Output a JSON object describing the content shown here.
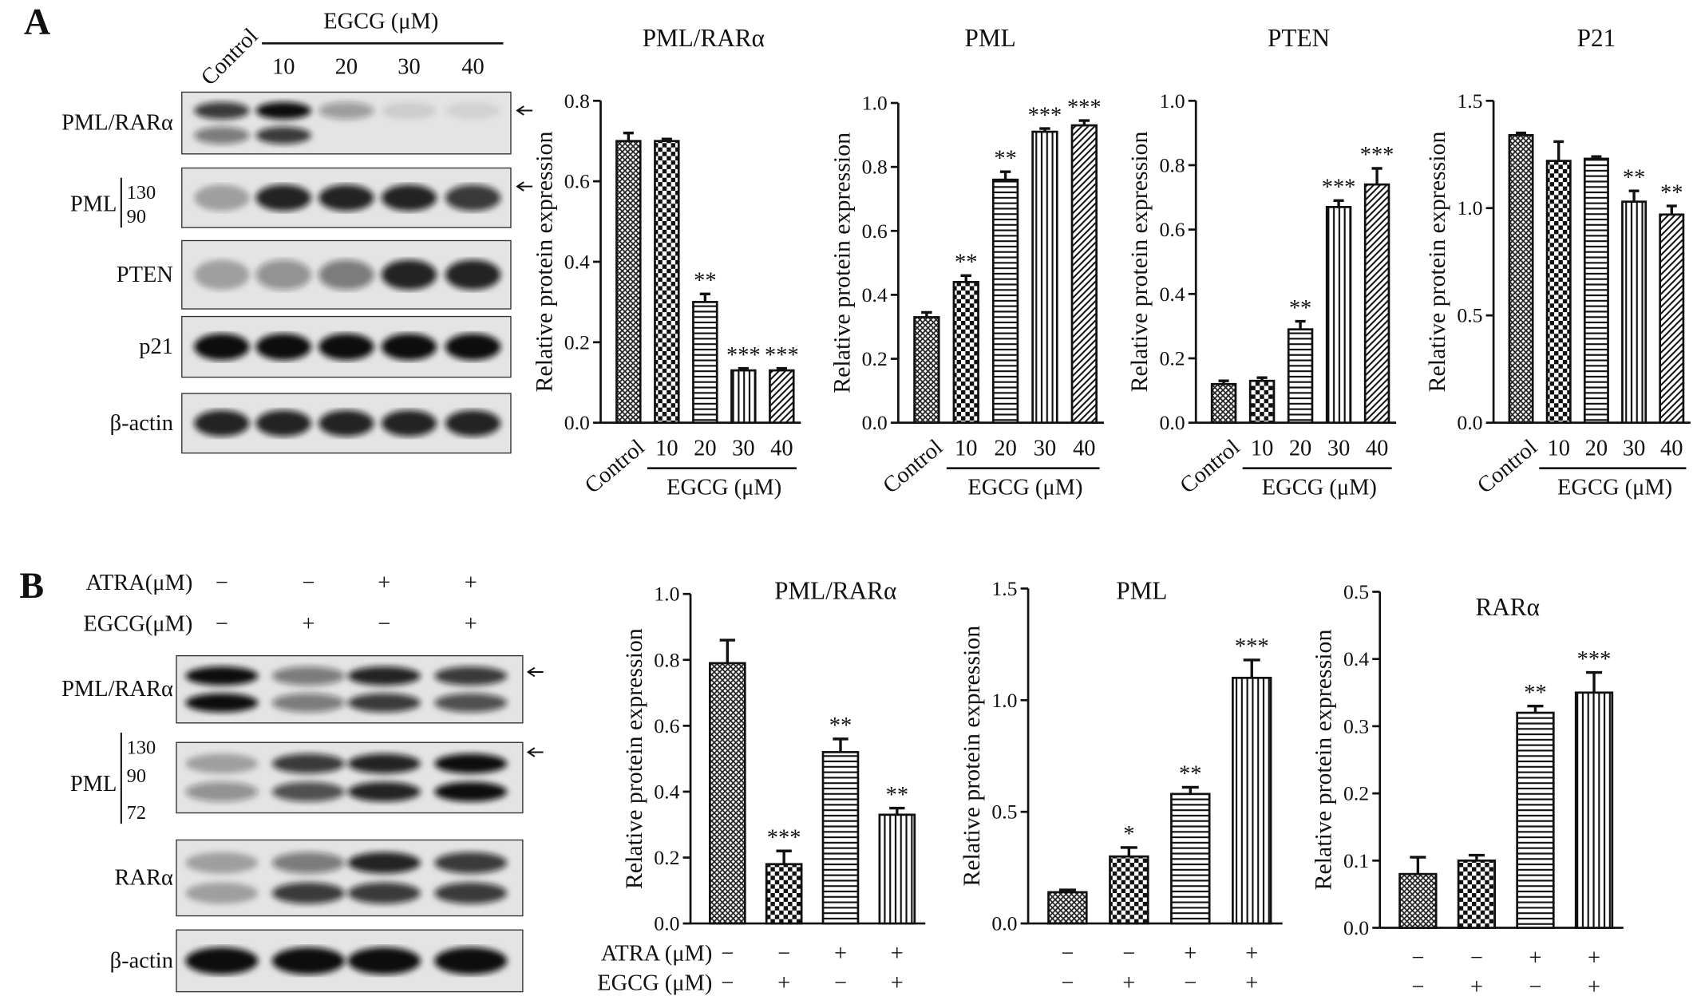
{
  "chart_data": [
    {
      "type": "bar",
      "title": "PML/RARα",
      "y_label": "Relative protein expression",
      "categories": [
        "Control",
        "10",
        "20",
        "30",
        "40"
      ],
      "group_label": "EGCG (μM)",
      "values": [
        0.7,
        0.7,
        0.3,
        0.13,
        0.13
      ],
      "errors": [
        0.02,
        0.005,
        0.02,
        0.005,
        0.005
      ],
      "significance": [
        null,
        null,
        "**",
        "***",
        "***"
      ],
      "patterns": [
        "crosshatch",
        "checker",
        "hlines",
        "vlines",
        "diag"
      ],
      "ylim": [
        0,
        0.8
      ],
      "yticks": [
        {
          "value": 0,
          "label": "0.0"
        },
        0.2,
        0.4,
        0.6,
        0.8
      ]
    },
    {
      "type": "bar",
      "title": "PML",
      "y_label": "Relative protein expression",
      "categories": [
        "Control",
        "10",
        "20",
        "30",
        "40"
      ],
      "group_label": "EGCG (μM)",
      "values": [
        0.33,
        0.44,
        0.76,
        0.91,
        0.93
      ],
      "errors": [
        0.015,
        0.02,
        0.025,
        0.01,
        0.015
      ],
      "significance": [
        null,
        "**",
        "**",
        "***",
        "***"
      ],
      "patterns": [
        "crosshatch",
        "checker",
        "hlines",
        "vlines",
        "diag"
      ],
      "ylim": [
        0,
        1.0
      ],
      "yticks": [
        {
          "value": 0,
          "label": "0.0"
        },
        0.2,
        0.4,
        0.6,
        0.8,
        {
          "value": 1.0,
          "label": "1.0"
        }
      ]
    },
    {
      "type": "bar",
      "title": "PTEN",
      "y_label": "Relative protein expression",
      "categories": [
        "Control",
        "10",
        "20",
        "30",
        "40"
      ],
      "group_label": "EGCG (μM)",
      "values": [
        0.12,
        0.13,
        0.29,
        0.67,
        0.74
      ],
      "errors": [
        0.01,
        0.01,
        0.025,
        0.02,
        0.05
      ],
      "significance": [
        null,
        null,
        "**",
        "***",
        "***"
      ],
      "patterns": [
        "crosshatch",
        "checker",
        "hlines",
        "vlines",
        "diag"
      ],
      "ylim": [
        0,
        1.0
      ],
      "yticks": [
        {
          "value": 0,
          "label": "0.0"
        },
        0.2,
        0.4,
        0.6,
        0.8,
        {
          "value": 1.0,
          "label": "1.0"
        }
      ]
    },
    {
      "type": "bar",
      "title": "P21",
      "y_label": "Relative protein expression",
      "categories": [
        "Control",
        "10",
        "20",
        "30",
        "40"
      ],
      "group_label": "EGCG (μM)",
      "values": [
        1.34,
        1.22,
        1.23,
        1.03,
        0.97
      ],
      "errors": [
        0.01,
        0.09,
        0.01,
        0.05,
        0.04
      ],
      "significance": [
        null,
        null,
        null,
        "**",
        "**"
      ],
      "patterns": [
        "crosshatch",
        "checker",
        "hlines",
        "vlines",
        "diag"
      ],
      "ylim": [
        0,
        1.5
      ],
      "yticks": [
        {
          "value": 0,
          "label": "0.0"
        },
        0.5,
        {
          "value": 1.0,
          "label": "1.0"
        },
        1.5
      ]
    },
    {
      "type": "bar",
      "title": "PML/RARα",
      "y_label": "Relative protein expression",
      "treatments": [
        {
          "name": "ATRA (μM)",
          "signs": [
            "−",
            "−",
            "+",
            "+"
          ]
        },
        {
          "name": "EGCG (μM)",
          "signs": [
            "−",
            "+",
            "−",
            "+"
          ]
        }
      ],
      "values": [
        0.79,
        0.18,
        0.52,
        0.33
      ],
      "errors": [
        0.07,
        0.04,
        0.04,
        0.02
      ],
      "significance": [
        null,
        "***",
        "**",
        "**"
      ],
      "patterns": [
        "crosshatch",
        "checker",
        "hlines",
        "vlines"
      ],
      "ylim": [
        0,
        1.0
      ],
      "yticks": [
        {
          "value": 0,
          "label": "0.0"
        },
        0.2,
        0.4,
        0.6,
        0.8,
        {
          "value": 1.0,
          "label": "1.0"
        }
      ]
    },
    {
      "type": "bar",
      "title": "PML",
      "y_label": "Relative protein expression",
      "treatments": [
        {
          "signs": [
            "−",
            "−",
            "+",
            "+"
          ]
        },
        {
          "signs": [
            "−",
            "+",
            "−",
            "+"
          ]
        }
      ],
      "values": [
        0.14,
        0.3,
        0.58,
        1.1
      ],
      "errors": [
        0.01,
        0.04,
        0.03,
        0.08
      ],
      "significance": [
        null,
        "*",
        "**",
        "***"
      ],
      "patterns": [
        "crosshatch",
        "checker",
        "hlines",
        "vlines"
      ],
      "ylim": [
        0,
        1.5
      ],
      "yticks": [
        {
          "value": 0,
          "label": "0.0"
        },
        0.5,
        {
          "value": 1.0,
          "label": "1.0"
        },
        1.5
      ]
    },
    {
      "type": "bar",
      "title": "RARα",
      "y_label": "Relative protein expression",
      "treatments": [
        {
          "signs": [
            "−",
            "−",
            "+",
            "+"
          ]
        },
        {
          "signs": [
            "−",
            "+",
            "−",
            "+"
          ]
        }
      ],
      "values": [
        0.08,
        0.1,
        0.32,
        0.35
      ],
      "errors": [
        0.025,
        0.008,
        0.01,
        0.03
      ],
      "significance": [
        null,
        null,
        "**",
        "***"
      ],
      "patterns": [
        "crosshatch",
        "checker",
        "hlines",
        "vlines"
      ],
      "ylim": [
        0,
        0.5
      ],
      "yticks": [
        {
          "value": 0,
          "label": "0.0"
        },
        0.1,
        0.2,
        0.3,
        0.4,
        0.5
      ]
    }
  ],
  "blots": [
    {
      "panel": "A",
      "columns": [
        "Control",
        "10",
        "20",
        "30",
        "40"
      ],
      "column_group": "EGCG (μM)",
      "rows": [
        "PML/RARα",
        "PML",
        "PTEN",
        "p21",
        "β-actin"
      ],
      "markers": [
        "130",
        "90"
      ]
    },
    {
      "panel": "B",
      "treatments": [
        {
          "name": "ATRA(μM)",
          "signs": [
            "−",
            "−",
            "+",
            "+"
          ]
        },
        {
          "name": "EGCG(μM)",
          "signs": [
            "−",
            "+",
            "−",
            "+"
          ]
        }
      ],
      "rows": [
        "PML/RARα",
        "PML",
        "RARα",
        "β-actin"
      ],
      "markers": [
        "130",
        "90",
        "72"
      ]
    }
  ]
}
